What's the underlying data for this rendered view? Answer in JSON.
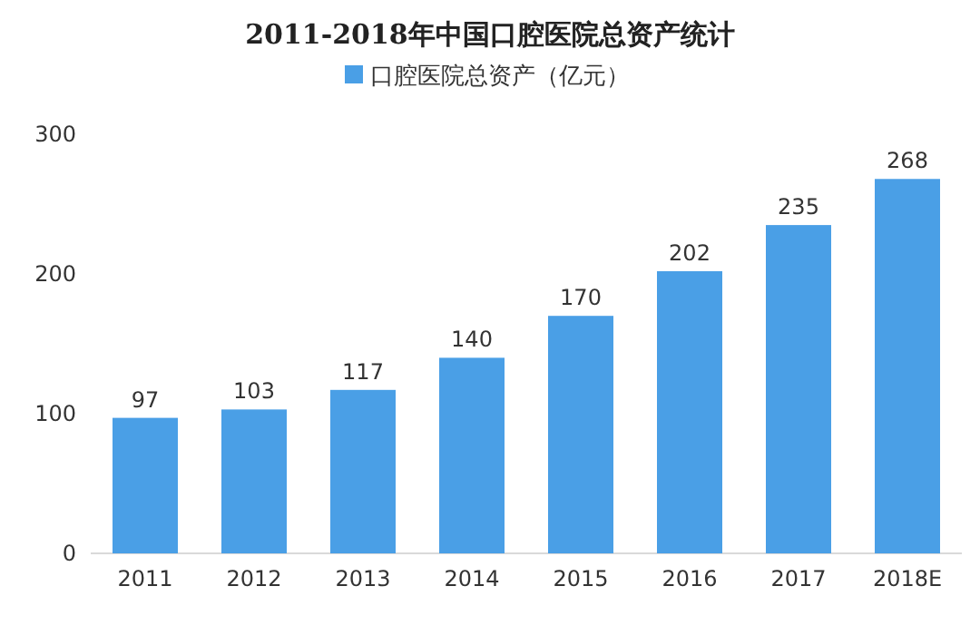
{
  "chart_data": {
    "type": "bar",
    "title": "2011-2018年中国口腔医院总资产统计",
    "categories": [
      "2011",
      "2012",
      "2013",
      "2014",
      "2015",
      "2016",
      "2017",
      "2018E"
    ],
    "series": [
      {
        "name": "口腔医院总资产（亿元）",
        "color": "#4a9fe6",
        "values": [
          97,
          103,
          117,
          140,
          170,
          202,
          235,
          268
        ]
      }
    ],
    "ylim": [
      0,
      300
    ],
    "yticks": [
      0,
      100,
      200,
      300
    ],
    "data_labels": true,
    "legend": "top",
    "grid": false
  }
}
